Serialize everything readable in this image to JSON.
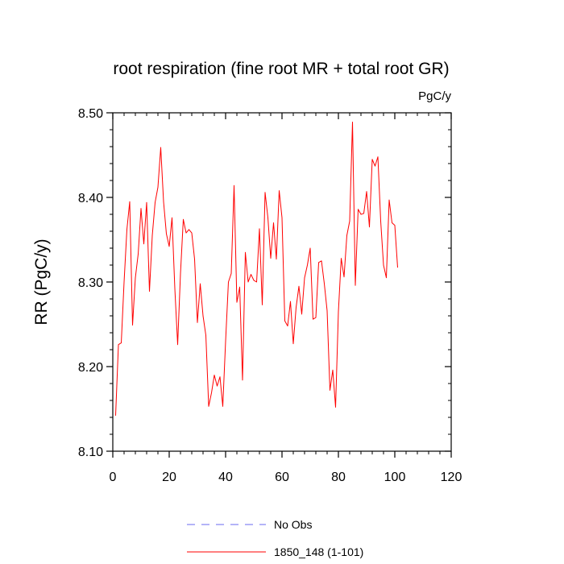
{
  "chart_data": {
    "type": "line",
    "title": "root respiration (fine root MR + total root GR)",
    "units": "PgC/y",
    "xlabel": "",
    "ylabel": "RR  (PgC/y)",
    "xlim": [
      0,
      120
    ],
    "ylim": [
      8.1,
      8.5
    ],
    "xticks": [
      0,
      20,
      40,
      60,
      80,
      100,
      120
    ],
    "xtick_labels": [
      "0",
      "20",
      "40",
      "60",
      "80",
      "100",
      "120"
    ],
    "yticks": [
      8.1,
      8.2,
      8.3,
      8.4,
      8.5
    ],
    "ytick_labels": [
      "8.10",
      "8.20",
      "8.30",
      "8.40",
      "8.50"
    ],
    "grid": false,
    "legend_position": "bottom",
    "series": [
      {
        "name": "1850_148 (1-101)",
        "color": "#ff0000",
        "style": "solid",
        "x": [
          1,
          2,
          3,
          4,
          5,
          6,
          7,
          8,
          9,
          10,
          11,
          12,
          13,
          14,
          15,
          16,
          17,
          18,
          19,
          20,
          21,
          22,
          23,
          24,
          25,
          26,
          27,
          28,
          29,
          30,
          31,
          32,
          33,
          34,
          35,
          36,
          37,
          38,
          39,
          40,
          41,
          42,
          43,
          44,
          45,
          46,
          47,
          48,
          49,
          50,
          51,
          52,
          53,
          54,
          55,
          56,
          57,
          58,
          59,
          60,
          61,
          62,
          63,
          64,
          65,
          66,
          67,
          68,
          69,
          70,
          71,
          72,
          73,
          74,
          75,
          76,
          77,
          78,
          79,
          80,
          81,
          82,
          83,
          84,
          85,
          86,
          87,
          88,
          89,
          90,
          91,
          92,
          93,
          94,
          95,
          96,
          97,
          98,
          99,
          100,
          101
        ],
        "values": [
          8.142,
          8.226,
          8.228,
          8.3,
          8.362,
          8.395,
          8.249,
          8.305,
          8.333,
          8.387,
          8.345,
          8.394,
          8.289,
          8.355,
          8.394,
          8.412,
          8.459,
          8.395,
          8.357,
          8.342,
          8.376,
          8.292,
          8.226,
          8.31,
          8.374,
          8.358,
          8.362,
          8.358,
          8.327,
          8.252,
          8.298,
          8.26,
          8.237,
          8.153,
          8.169,
          8.19,
          8.177,
          8.188,
          8.153,
          8.23,
          8.3,
          8.31,
          8.414,
          8.276,
          8.294,
          8.184,
          8.335,
          8.3,
          8.309,
          8.302,
          8.3,
          8.363,
          8.273,
          8.406,
          8.376,
          8.328,
          8.37,
          8.327,
          8.408,
          8.376,
          8.254,
          8.248,
          8.277,
          8.227,
          8.27,
          8.295,
          8.262,
          8.305,
          8.32,
          8.34,
          8.256,
          8.258,
          8.323,
          8.325,
          8.298,
          8.266,
          8.172,
          8.196,
          8.152,
          8.265,
          8.328,
          8.306,
          8.355,
          8.372,
          8.489,
          8.296,
          8.386,
          8.38,
          8.381,
          8.407,
          8.365,
          8.445,
          8.437,
          8.448,
          8.372,
          8.32,
          8.305,
          8.397,
          8.37,
          8.367,
          8.317
        ]
      },
      {
        "name": "No Obs",
        "color": "#6a6af0",
        "style": "dashed",
        "x": [],
        "values": []
      }
    ]
  }
}
